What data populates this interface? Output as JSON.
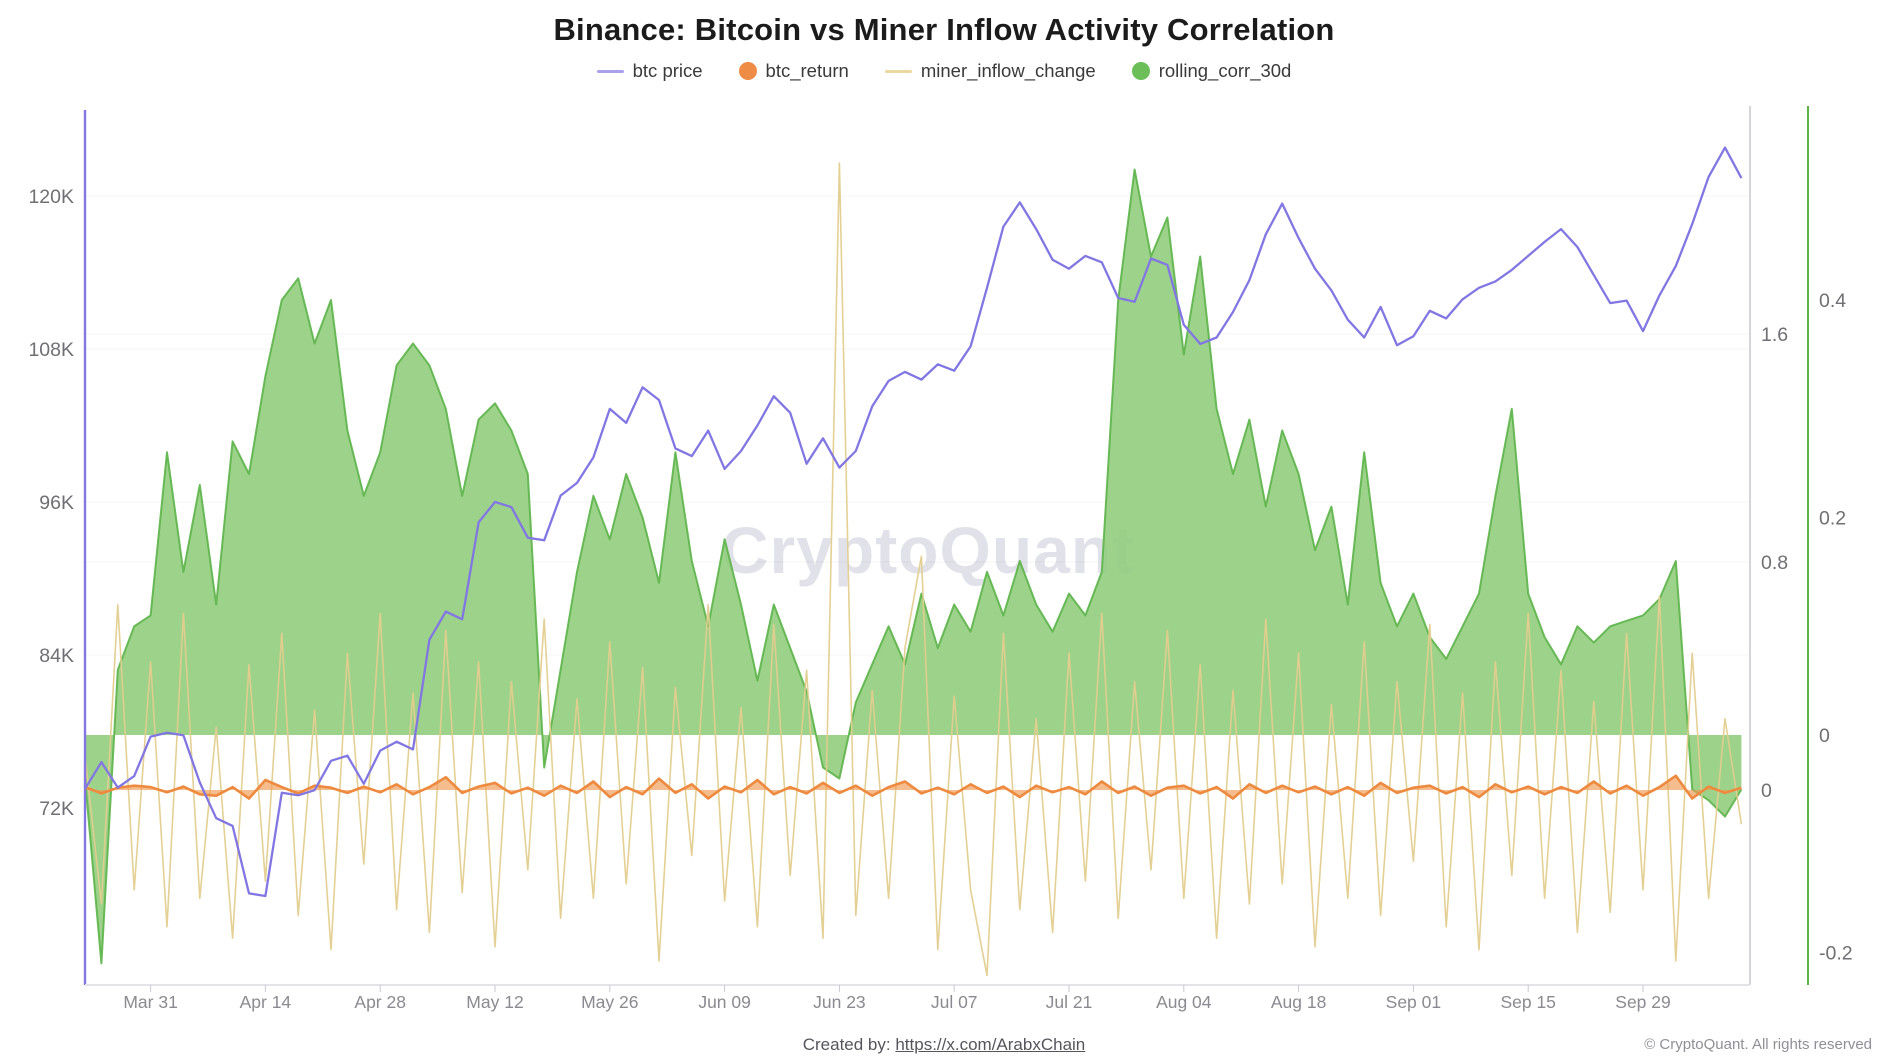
{
  "page": {
    "title": "Binance: Bitcoin vs Miner Inflow Activity Correlation",
    "watermark": "CryptoQuant",
    "footer": {
      "created_by": "Created by:",
      "link": "https://x.com/ArabxChain",
      "copyright": "© CryptoQuant. All rights reserved"
    }
  },
  "legend": [
    {
      "label": "btc price",
      "swatch": "line",
      "color": "#a9a1ec"
    },
    {
      "label": "btc_return",
      "swatch": "dot",
      "color": "#ee8b44"
    },
    {
      "label": "miner_inflow_change",
      "swatch": "line",
      "color": "#ecd9a2"
    },
    {
      "label": "rolling_corr_30d",
      "swatch": "dot",
      "color": "#6cbf58"
    }
  ],
  "chart_data": {
    "type": "line",
    "title": "Binance: Bitcoin vs Miner Inflow Activity Correlation",
    "x_unit": "date, 2-day steps from Mar 23 to Oct 11",
    "x_tick_labels": [
      "Mar 31",
      "Apr 14",
      "Apr 28",
      "May 12",
      "May 26",
      "Jun 09",
      "Jun 23",
      "Jul 07",
      "Jul 21",
      "Aug 04",
      "Aug 18",
      "Sep 01",
      "Sep 15",
      "Sep 29"
    ],
    "x_tick_step_days": 14,
    "x_first_tick_day": 8,
    "axes": {
      "left": {
        "name": "btc price (USD)",
        "ticks": [
          "72K",
          "84K",
          "96K",
          "108K",
          "120K"
        ],
        "tick_values": [
          72,
          84,
          96,
          108,
          120
        ],
        "color": "#8277e2"
      },
      "right_inner": {
        "name": "btc_return / miner_inflow_change",
        "ticks": [
          "0",
          "0.8",
          "1.6"
        ],
        "tick_values": [
          0,
          0.8,
          1.6
        ],
        "color": "#d4d4da"
      },
      "right_outer": {
        "name": "rolling_corr_30d",
        "ticks": [
          "-0.2",
          "0",
          "0.2",
          "0.4"
        ],
        "tick_values": [
          -0.2,
          0,
          0.2,
          0.4
        ],
        "color": "#5cb449"
      }
    },
    "series": [
      {
        "name": "btc price",
        "type": "line",
        "axis": "price",
        "color": "#8277e2",
        "values": [
          73.5,
          75.6,
          73.6,
          74.5,
          77.6,
          77.9,
          77.7,
          74.0,
          71.2,
          70.6,
          65.3,
          65.1,
          73.2,
          73.0,
          73.4,
          75.7,
          76.1,
          73.9,
          76.5,
          77.2,
          76.6,
          85.2,
          87.4,
          86.8,
          94.4,
          96.0,
          95.6,
          93.2,
          93.0,
          96.5,
          97.5,
          99.5,
          103.3,
          102.2,
          105.0,
          104.0,
          100.2,
          99.6,
          101.6,
          98.6,
          100.0,
          102.0,
          104.3,
          103.0,
          99.0,
          101.0,
          98.7,
          100.0,
          103.5,
          105.5,
          106.2,
          105.6,
          106.8,
          106.3,
          108.2,
          112.8,
          117.6,
          119.5,
          117.4,
          115.0,
          114.3,
          115.3,
          114.8,
          112.0,
          111.7,
          115.1,
          114.6,
          109.9,
          108.4,
          108.9,
          110.9,
          113.4,
          117.0,
          119.4,
          116.7,
          114.3,
          112.6,
          110.3,
          108.9,
          111.3,
          108.3,
          109.0,
          111.0,
          110.4,
          111.9,
          112.8,
          113.3,
          114.2,
          115.3,
          116.4,
          117.4,
          116.0,
          113.8,
          111.6,
          111.8,
          109.4,
          112.2,
          114.5,
          117.8,
          121.5,
          123.8,
          121.4
        ]
      },
      {
        "name": "btc_return",
        "type": "line+band",
        "axis": "ratio",
        "color": "#ed8a3f",
        "values": [
          0.01,
          -0.012,
          0.008,
          0.015,
          0.01,
          -0.008,
          0.012,
          -0.015,
          -0.02,
          0.01,
          -0.03,
          0.035,
          0.01,
          -0.012,
          0.015,
          0.008,
          -0.01,
          0.012,
          -0.008,
          0.02,
          -0.015,
          0.01,
          0.045,
          -0.01,
          0.012,
          0.025,
          -0.012,
          0.008,
          -0.02,
          0.015,
          -0.01,
          0.03,
          -0.025,
          0.01,
          -0.015,
          0.04,
          -0.01,
          0.02,
          -0.03,
          0.012,
          -0.008,
          0.035,
          -0.015,
          0.01,
          -0.012,
          0.025,
          -0.01,
          0.015,
          -0.02,
          0.01,
          0.03,
          -0.012,
          0.008,
          -0.015,
          0.02,
          -0.01,
          0.012,
          -0.025,
          0.015,
          -0.008,
          0.01,
          -0.015,
          0.03,
          -0.01,
          0.012,
          -0.02,
          0.008,
          0.015,
          -0.012,
          0.01,
          -0.03,
          0.02,
          -0.01,
          0.015,
          -0.008,
          0.012,
          -0.015,
          0.01,
          -0.02,
          0.025,
          -0.01,
          0.008,
          0.015,
          -0.012,
          0.01,
          -0.025,
          0.02,
          -0.008,
          0.012,
          -0.015,
          0.01,
          -0.01,
          0.03,
          -0.012,
          0.015,
          -0.02,
          0.01,
          0.05,
          -0.03,
          0.012,
          -0.01,
          0.008
        ]
      },
      {
        "name": "miner_inflow_change",
        "type": "line",
        "axis": "ratio",
        "color": "#e3cd8e",
        "values": [
          0.12,
          -0.4,
          0.65,
          -0.35,
          0.45,
          -0.48,
          0.62,
          -0.38,
          0.22,
          -0.52,
          0.44,
          -0.32,
          0.55,
          -0.44,
          0.28,
          -0.56,
          0.48,
          -0.26,
          0.62,
          -0.42,
          0.34,
          -0.5,
          0.56,
          -0.36,
          0.45,
          -0.55,
          0.38,
          -0.28,
          0.6,
          -0.45,
          0.32,
          -0.38,
          0.52,
          -0.33,
          0.43,
          -0.6,
          0.36,
          -0.23,
          0.65,
          -0.39,
          0.29,
          -0.48,
          0.58,
          -0.3,
          0.42,
          -0.52,
          2.2,
          -0.44,
          0.35,
          -0.38,
          0.5,
          0.82,
          -0.56,
          0.33,
          -0.35,
          -0.65,
          0.55,
          -0.42,
          0.25,
          -0.5,
          0.48,
          -0.32,
          0.62,
          -0.45,
          0.38,
          -0.28,
          0.56,
          -0.38,
          0.44,
          -0.52,
          0.35,
          -0.4,
          0.6,
          -0.33,
          0.48,
          -0.55,
          0.3,
          -0.38,
          0.52,
          -0.44,
          0.38,
          -0.25,
          0.58,
          -0.48,
          0.34,
          -0.56,
          0.45,
          -0.3,
          0.62,
          -0.38,
          0.42,
          -0.5,
          0.31,
          -0.43,
          0.55,
          -0.35,
          0.68,
          -0.6,
          0.48,
          -0.38,
          0.25,
          -0.12
        ]
      },
      {
        "name": "rolling_corr_30d",
        "type": "area",
        "axis": "corr",
        "color_fill": "#8fcc7b",
        "color_line": "#5cb449",
        "values": [
          -0.04,
          -0.21,
          0.06,
          0.1,
          0.11,
          0.26,
          0.15,
          0.23,
          0.12,
          0.27,
          0.24,
          0.33,
          0.4,
          0.42,
          0.36,
          0.4,
          0.28,
          0.22,
          0.26,
          0.34,
          0.36,
          0.34,
          0.3,
          0.22,
          0.29,
          0.305,
          0.28,
          0.24,
          -0.03,
          0.06,
          0.15,
          0.22,
          0.18,
          0.24,
          0.2,
          0.14,
          0.26,
          0.16,
          0.1,
          0.18,
          0.12,
          0.05,
          0.12,
          0.08,
          0.04,
          -0.03,
          -0.04,
          0.03,
          0.065,
          0.1,
          0.065,
          0.13,
          0.08,
          0.12,
          0.095,
          0.15,
          0.11,
          0.16,
          0.12,
          0.095,
          0.13,
          0.11,
          0.15,
          0.4,
          0.52,
          0.44,
          0.476,
          0.35,
          0.44,
          0.3,
          0.24,
          0.29,
          0.21,
          0.28,
          0.24,
          0.17,
          0.21,
          0.12,
          0.26,
          0.14,
          0.1,
          0.13,
          0.09,
          0.07,
          0.1,
          0.13,
          0.22,
          0.3,
          0.13,
          0.09,
          0.065,
          0.1,
          0.085,
          0.1,
          0.105,
          0.11,
          0.125,
          0.16,
          -0.05,
          -0.06,
          -0.075,
          -0.05
        ]
      }
    ]
  }
}
